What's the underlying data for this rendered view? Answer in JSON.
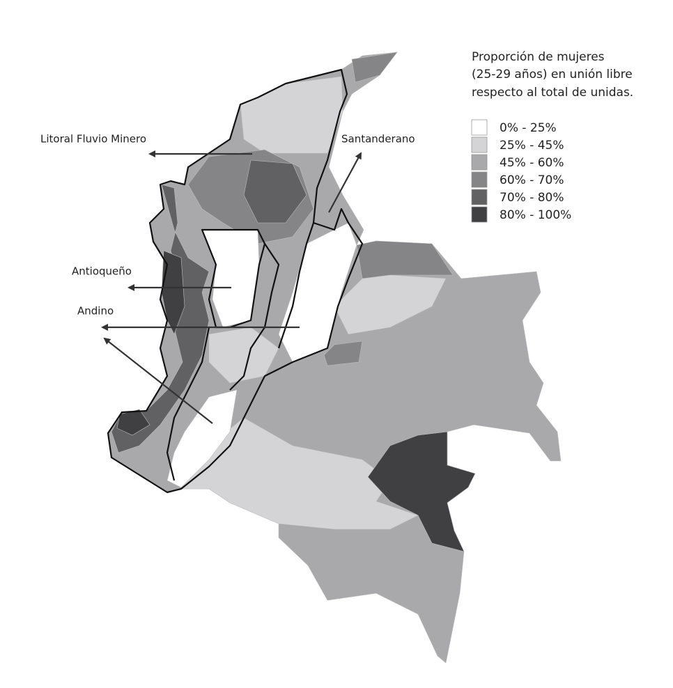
{
  "legend": {
    "title": [
      "Proporción de mujeres",
      "(25-29 años) en unión libre",
      "respecto al total de unidas."
    ],
    "items": [
      {
        "label": "0% - 25%",
        "color": "#ffffff"
      },
      {
        "label": "25% - 45%",
        "color": "#d4d4d6"
      },
      {
        "label": "45% - 60%",
        "color": "#a9a9ab"
      },
      {
        "label": "60% - 70%",
        "color": "#858587"
      },
      {
        "label": "70% - 80%",
        "color": "#616163"
      },
      {
        "label": "80% - 100%",
        "color": "#404042"
      }
    ]
  },
  "regions": [
    {
      "label": "Litoral Fluvio Minero"
    },
    {
      "label": "Santanderano"
    },
    {
      "label": "Antioqueño"
    },
    {
      "label": "Andino"
    }
  ]
}
